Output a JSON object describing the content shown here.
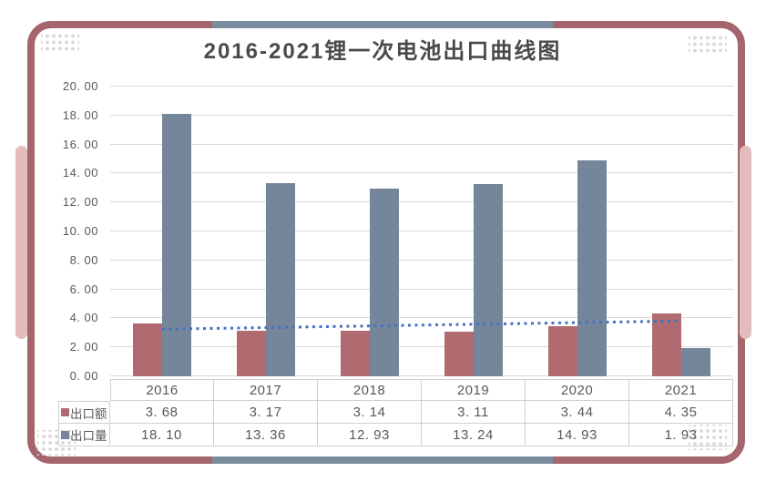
{
  "title": "2016-2021锂一次电池出口曲线图",
  "colors": {
    "frame_border": "#a5656c",
    "frame_pink": "#e2bdbc",
    "frame_blue": "#7b8c9e",
    "bar_red": "#af6b6f",
    "bar_blue": "#75869a",
    "trend_blue": "#4472c4",
    "gridline": "#d9d9d9",
    "text": "#595959"
  },
  "chart_data": {
    "type": "bar",
    "title": "2016-2021锂一次电池出口曲线图",
    "categories": [
      "2016",
      "2017",
      "2018",
      "2019",
      "2020",
      "2021"
    ],
    "series": [
      {
        "name": "出口额",
        "color_key": "bar_red",
        "values": [
          3.68,
          3.17,
          3.14,
          3.11,
          3.44,
          4.35
        ]
      },
      {
        "name": "出口量",
        "color_key": "bar_blue",
        "values": [
          18.1,
          13.36,
          12.93,
          13.24,
          14.93,
          1.93
        ]
      }
    ],
    "trendline": {
      "style": "dotted-linear",
      "for_series": "出口额",
      "start_value": 3.25,
      "end_value": 3.82,
      "color_key": "trend_blue"
    },
    "ylim": [
      0,
      20
    ],
    "y_tick_step": 2,
    "y_tick_labels": [
      "0. 00",
      "2. 00",
      "4. 00",
      "6. 00",
      "8. 00",
      "10. 00",
      "12. 00",
      "14. 00",
      "16. 00",
      "18. 00",
      "20. 00"
    ],
    "grid": true,
    "legend_position": "table-left-column"
  },
  "table": {
    "header": [
      "2016",
      "2017",
      "2018",
      "2019",
      "2020",
      "2021"
    ],
    "rows": [
      {
        "legend": "出口额",
        "marker_color_key": "bar_red",
        "cells": [
          "3. 68",
          "3. 17",
          "3. 14",
          "3. 11",
          "3. 44",
          "4. 35"
        ]
      },
      {
        "legend": "出口量",
        "marker_color_key": "bar_blue",
        "cells": [
          "18. 10",
          "13. 36",
          "12. 93",
          "13. 24",
          "14. 93",
          "1. 93"
        ]
      }
    ]
  }
}
